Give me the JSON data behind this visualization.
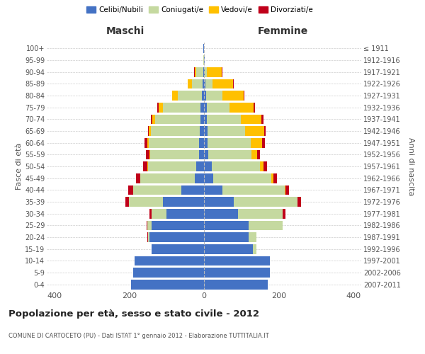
{
  "age_groups": [
    "0-4",
    "5-9",
    "10-14",
    "15-19",
    "20-24",
    "25-29",
    "30-34",
    "35-39",
    "40-44",
    "45-49",
    "50-54",
    "55-59",
    "60-64",
    "65-69",
    "70-74",
    "75-79",
    "80-84",
    "85-89",
    "90-94",
    "95-99",
    "100+"
  ],
  "birth_years": [
    "2007-2011",
    "2002-2006",
    "1997-2001",
    "1992-1996",
    "1987-1991",
    "1982-1986",
    "1977-1981",
    "1972-1976",
    "1967-1971",
    "1962-1966",
    "1957-1961",
    "1952-1956",
    "1947-1951",
    "1942-1946",
    "1937-1941",
    "1932-1936",
    "1927-1931",
    "1922-1926",
    "1917-1921",
    "1912-1916",
    "≤ 1911"
  ],
  "males": {
    "celibi": [
      195,
      190,
      185,
      140,
      145,
      140,
      100,
      110,
      60,
      25,
      20,
      14,
      13,
      12,
      10,
      10,
      5,
      3,
      2,
      0,
      1
    ],
    "coniugati": [
      0,
      0,
      0,
      0,
      5,
      12,
      40,
      90,
      130,
      145,
      130,
      130,
      135,
      130,
      120,
      100,
      65,
      30,
      18,
      2,
      1
    ],
    "vedovi": [
      0,
      0,
      0,
      0,
      0,
      0,
      0,
      0,
      0,
      0,
      1,
      2,
      3,
      5,
      8,
      12,
      15,
      10,
      5,
      0,
      0
    ],
    "divorziati": [
      0,
      0,
      0,
      0,
      1,
      2,
      5,
      10,
      12,
      12,
      12,
      10,
      8,
      3,
      3,
      2,
      1,
      1,
      1,
      0,
      0
    ]
  },
  "females": {
    "nubili": [
      170,
      175,
      175,
      130,
      120,
      120,
      90,
      80,
      50,
      25,
      20,
      12,
      10,
      10,
      8,
      8,
      5,
      3,
      2,
      1,
      0
    ],
    "coniugate": [
      0,
      0,
      0,
      10,
      20,
      90,
      120,
      170,
      165,
      155,
      130,
      115,
      115,
      100,
      90,
      60,
      45,
      20,
      5,
      0,
      0
    ],
    "vedove": [
      0,
      0,
      0,
      0,
      0,
      0,
      0,
      0,
      2,
      5,
      8,
      15,
      30,
      50,
      55,
      65,
      55,
      55,
      40,
      0,
      0
    ],
    "divorziate": [
      0,
      0,
      0,
      0,
      0,
      0,
      8,
      10,
      10,
      10,
      10,
      7,
      8,
      5,
      5,
      3,
      3,
      2,
      2,
      0,
      0
    ]
  },
  "colors": {
    "celibi": "#4472c4",
    "coniugati": "#c5d9a0",
    "vedovi": "#ffc000",
    "divorziati": "#c0001a"
  },
  "xlim": 420,
  "title": "Popolazione per età, sesso e stato civile - 2012",
  "subtitle": "COMUNE DI CARTOCETO (PU) - Dati ISTAT 1° gennaio 2012 - Elaborazione TUTTITALIA.IT",
  "xlabel_left": "Maschi",
  "xlabel_right": "Femmine",
  "ylabel_left": "Fasce di età",
  "ylabel_right": "Anni di nascita",
  "legend_labels": [
    "Celibi/Nubili",
    "Coniugati/e",
    "Vedovi/e",
    "Divorziati/e"
  ],
  "bg_color": "#ffffff",
  "grid_color": "#cccccc",
  "bar_height": 0.82,
  "xticks": [
    -400,
    -200,
    0,
    200,
    400
  ],
  "xtick_labels": [
    "400",
    "200",
    "0",
    "200",
    "400"
  ]
}
